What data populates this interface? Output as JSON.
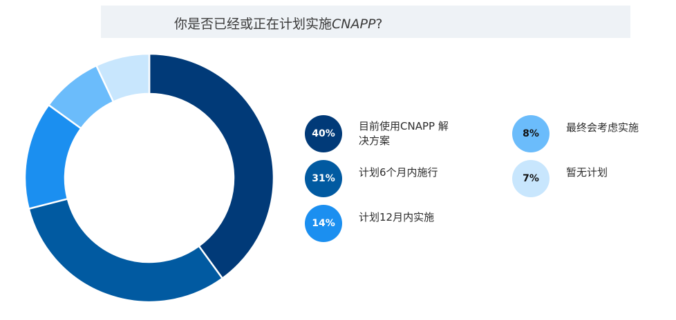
{
  "title": {
    "prefix": "你是否已经或正在计划实施",
    "emphasis": "CNAPP",
    "suffix": "?"
  },
  "chart_data": {
    "type": "pie",
    "subtype": "donut",
    "categories": [
      "目前使用CNAPP解决方案",
      "计划6个月内施行",
      "计划12月内实施",
      "最终会考虑实施",
      "暂无计划"
    ],
    "values": [
      40,
      31,
      14,
      8,
      7
    ],
    "unit": "%",
    "colors": [
      "#013a78",
      "#015aa1",
      "#1b8ff0",
      "#6bbcfb",
      "#c8e6fd"
    ],
    "labels": [
      "40%",
      "31%",
      "14%",
      "8%",
      "7%"
    ]
  },
  "legend": [
    {
      "value": "40%",
      "label": "目前使用CNAPP 解决方案",
      "color": "#013a78"
    },
    {
      "value": "31%",
      "label": "计划6个月内施行",
      "color": "#015aa1"
    },
    {
      "value": "14%",
      "label": "计划12月内实施",
      "color": "#1b8ff0"
    },
    {
      "value": "8%",
      "label": "最终会考虑实施",
      "color": "#6bbcfb"
    },
    {
      "value": "7%",
      "label": "暂无计划",
      "color": "#c8e6fd"
    }
  ]
}
